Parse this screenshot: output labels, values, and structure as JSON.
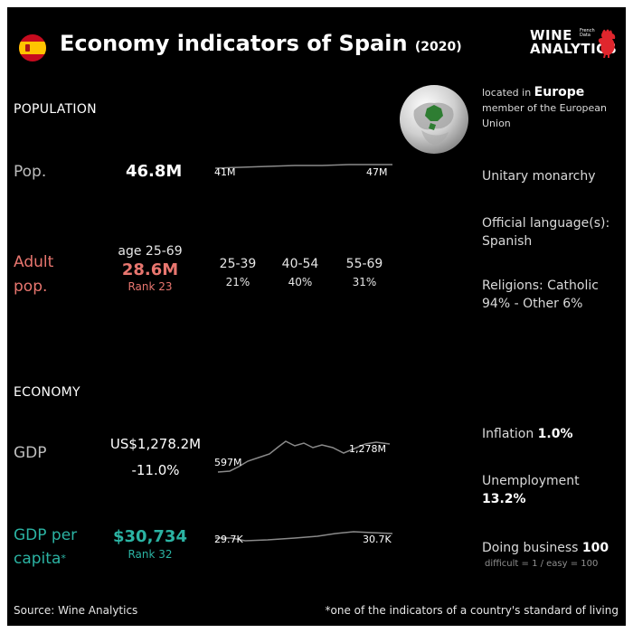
{
  "header": {
    "title": "Economy indicators of Spain",
    "year": "(2020)",
    "logo_line1": "WINE",
    "logo_line2": "ANALYTICS",
    "logo_small1": "French",
    "logo_small2": "Data",
    "flag_colors": [
      "#c60b1e",
      "#ffc400"
    ],
    "logo_icon": "rooster-icon"
  },
  "population": {
    "section_title": "POPULATION",
    "pop_label": "Pop.",
    "pop_value": "46.8M",
    "spark_start": "41M",
    "spark_end": "47M",
    "adult_label_line1": "Adult",
    "adult_label_line2": "pop.",
    "age_range": "age 25-69",
    "adult_value": "28.6M",
    "adult_rank": "Rank 23",
    "age_groups": [
      {
        "range": "25-39",
        "share": "21%"
      },
      {
        "range": "40-54",
        "share": "40%"
      },
      {
        "range": "55-69",
        "share": "31%"
      }
    ]
  },
  "side": {
    "located_prefix": "located in",
    "continent": "Europe",
    "member_line1": "member of the European",
    "member_line2": "Union",
    "government": "Unitary monarchy",
    "language_label": "Official language(s):",
    "language_value": "Spanish",
    "religions_line1": "Religions: Catholic",
    "religions_line2": "94% - Other 6%",
    "inflation_label": "Inflation",
    "inflation_value": "1.0%",
    "unemployment_label": "Unemployment",
    "unemployment_value": "13.2%",
    "doing_business_label": "Doing business",
    "doing_business_value": "100",
    "doing_business_note": "difficult = 1 / easy = 100"
  },
  "economy": {
    "section_title": "ECONOMY",
    "gdp_label": "GDP",
    "gdp_value": "US$1,278.2M",
    "gdp_growth": "-11.0%",
    "gdp_spark_start": "597M",
    "gdp_spark_end": "1,278M",
    "gdppc_label_line1": "GDP per",
    "gdppc_label_line2": "capita",
    "gdppc_asterisk": "*",
    "gdppc_value": "$30,734",
    "gdppc_rank": "Rank 32",
    "gdppc_spark_start": "29.7K",
    "gdppc_spark_end": "30.7K"
  },
  "footer": {
    "source": "Source: Wine  Analytics",
    "note": "*one of the indicators of a country's standard of living"
  },
  "colors": {
    "background": "#000000",
    "adult_accent": "#e8766f",
    "gdp_per_capita_accent": "#2bb3a3",
    "sparkline": "#8a8a8a",
    "globe_region": "#2e7d32"
  },
  "icons": [
    "spain-flag-icon",
    "rooster-icon",
    "globe-europe-icon"
  ]
}
